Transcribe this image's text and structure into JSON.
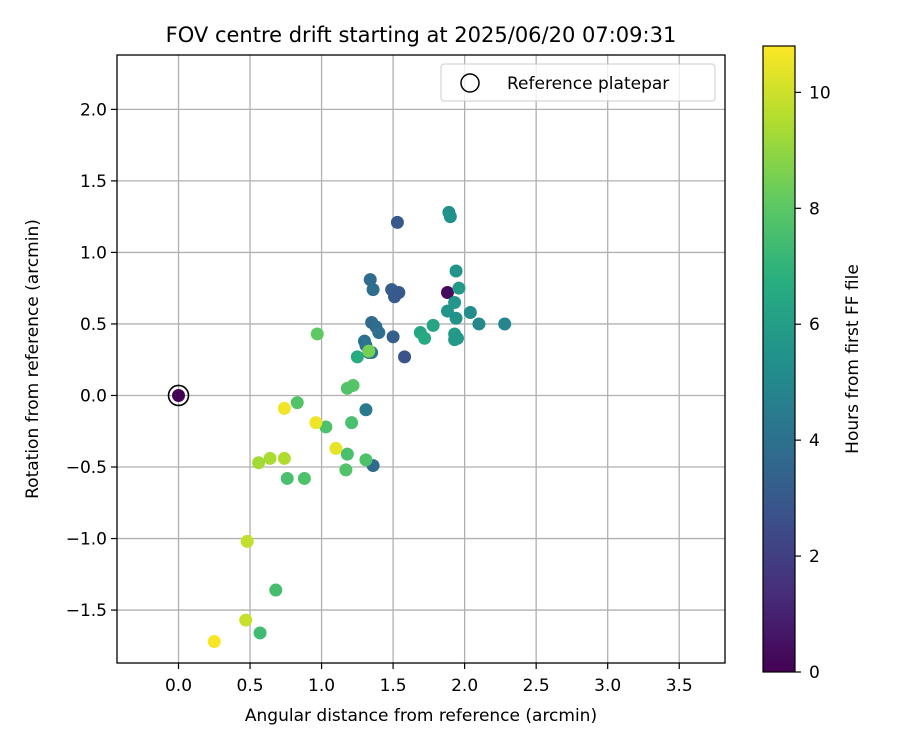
{
  "chart_data": {
    "type": "scatter",
    "title": "FOV centre drift starting at 2025/06/20 07:09:31",
    "xlabel": "Angular distance from reference (arcmin)",
    "ylabel": "Rotation from reference (arcmin)",
    "xlim": [
      -0.43,
      3.82
    ],
    "ylim": [
      -1.87,
      2.38
    ],
    "xticks": [
      0.0,
      0.5,
      1.0,
      1.5,
      2.0,
      2.5,
      3.0,
      3.5
    ],
    "xtick_labels": [
      "0.0",
      "0.5",
      "1.0",
      "1.5",
      "2.0",
      "2.5",
      "3.0",
      "3.5"
    ],
    "yticks": [
      -1.5,
      -1.0,
      -0.5,
      0.0,
      0.5,
      1.0,
      1.5,
      2.0
    ],
    "ytick_labels": [
      "−1.5",
      "−1.0",
      "−0.5",
      "0.0",
      "0.5",
      "1.0",
      "1.5",
      "2.0"
    ],
    "grid": true,
    "legend": {
      "placement": "top-right",
      "entries": [
        "Reference platepar"
      ]
    },
    "reference_marker": {
      "x": 0.0,
      "y": 0.0,
      "label": "Reference platepar"
    },
    "colorbar": {
      "label": "Hours from first FF file",
      "colormap": "viridis",
      "range": [
        0,
        10.8
      ],
      "ticks": [
        0,
        2,
        4,
        6,
        8,
        10
      ],
      "tick_labels": [
        "0",
        "2",
        "4",
        "6",
        "8",
        "10"
      ]
    },
    "points": [
      {
        "x": 0.0,
        "y": 0.0,
        "c": 0.0
      },
      {
        "x": 1.88,
        "y": 0.72,
        "c": 0.3
      },
      {
        "x": 1.53,
        "y": 1.21,
        "c": 3.0
      },
      {
        "x": 1.49,
        "y": 0.74,
        "c": 3.2
      },
      {
        "x": 1.51,
        "y": 0.69,
        "c": 3.1
      },
      {
        "x": 1.54,
        "y": 0.72,
        "c": 3.0
      },
      {
        "x": 1.58,
        "y": 0.27,
        "c": 2.8
      },
      {
        "x": 1.5,
        "y": 0.41,
        "c": 3.3
      },
      {
        "x": 1.34,
        "y": 0.81,
        "c": 3.8
      },
      {
        "x": 1.36,
        "y": 0.74,
        "c": 3.9
      },
      {
        "x": 1.35,
        "y": 0.51,
        "c": 3.7
      },
      {
        "x": 1.38,
        "y": 0.48,
        "c": 3.8
      },
      {
        "x": 1.4,
        "y": 0.44,
        "c": 3.9
      },
      {
        "x": 1.3,
        "y": 0.38,
        "c": 4.0
      },
      {
        "x": 1.31,
        "y": 0.35,
        "c": 4.1
      },
      {
        "x": 1.33,
        "y": 0.3,
        "c": 4.2
      },
      {
        "x": 1.35,
        "y": 0.3,
        "c": 4.3
      },
      {
        "x": 1.36,
        "y": -0.49,
        "c": 3.7
      },
      {
        "x": 1.31,
        "y": -0.1,
        "c": 4.4
      },
      {
        "x": 1.89,
        "y": 1.28,
        "c": 5.3
      },
      {
        "x": 1.9,
        "y": 1.25,
        "c": 5.4
      },
      {
        "x": 1.94,
        "y": 0.87,
        "c": 5.6
      },
      {
        "x": 1.96,
        "y": 0.75,
        "c": 5.8
      },
      {
        "x": 1.93,
        "y": 0.65,
        "c": 5.7
      },
      {
        "x": 1.88,
        "y": 0.59,
        "c": 5.6
      },
      {
        "x": 1.94,
        "y": 0.54,
        "c": 5.5
      },
      {
        "x": 2.04,
        "y": 0.58,
        "c": 5.2
      },
      {
        "x": 2.1,
        "y": 0.5,
        "c": 5.0
      },
      {
        "x": 2.28,
        "y": 0.5,
        "c": 4.9
      },
      {
        "x": 1.93,
        "y": 0.43,
        "c": 5.9
      },
      {
        "x": 1.93,
        "y": 0.39,
        "c": 5.8
      },
      {
        "x": 1.95,
        "y": 0.4,
        "c": 5.7
      },
      {
        "x": 1.78,
        "y": 0.49,
        "c": 6.3
      },
      {
        "x": 1.69,
        "y": 0.44,
        "c": 6.4
      },
      {
        "x": 1.72,
        "y": 0.4,
        "c": 6.5
      },
      {
        "x": 1.25,
        "y": 0.27,
        "c": 6.6
      },
      {
        "x": 1.33,
        "y": 0.31,
        "c": 8.5
      },
      {
        "x": 0.97,
        "y": 0.43,
        "c": 8.1
      },
      {
        "x": 1.22,
        "y": 0.07,
        "c": 7.9
      },
      {
        "x": 1.18,
        "y": 0.05,
        "c": 7.8
      },
      {
        "x": 0.83,
        "y": -0.05,
        "c": 7.8
      },
      {
        "x": 1.21,
        "y": -0.19,
        "c": 7.6
      },
      {
        "x": 1.03,
        "y": -0.22,
        "c": 7.7
      },
      {
        "x": 1.18,
        "y": -0.41,
        "c": 7.6
      },
      {
        "x": 1.31,
        "y": -0.45,
        "c": 7.7
      },
      {
        "x": 1.17,
        "y": -0.52,
        "c": 7.8
      },
      {
        "x": 0.76,
        "y": -0.58,
        "c": 7.6
      },
      {
        "x": 0.88,
        "y": -0.58,
        "c": 7.7
      },
      {
        "x": 0.68,
        "y": -1.36,
        "c": 7.5
      },
      {
        "x": 0.57,
        "y": -1.66,
        "c": 7.4
      },
      {
        "x": 0.74,
        "y": -0.44,
        "c": 9.5
      },
      {
        "x": 0.64,
        "y": -0.44,
        "c": 9.4
      },
      {
        "x": 0.56,
        "y": -0.47,
        "c": 9.3
      },
      {
        "x": 0.48,
        "y": -1.02,
        "c": 9.8
      },
      {
        "x": 0.47,
        "y": -1.57,
        "c": 9.9
      },
      {
        "x": 0.74,
        "y": -0.09,
        "c": 10.6
      },
      {
        "x": 0.96,
        "y": -0.19,
        "c": 10.6
      },
      {
        "x": 1.1,
        "y": -0.37,
        "c": 10.4
      },
      {
        "x": 0.25,
        "y": -1.72,
        "c": 10.7
      }
    ]
  }
}
